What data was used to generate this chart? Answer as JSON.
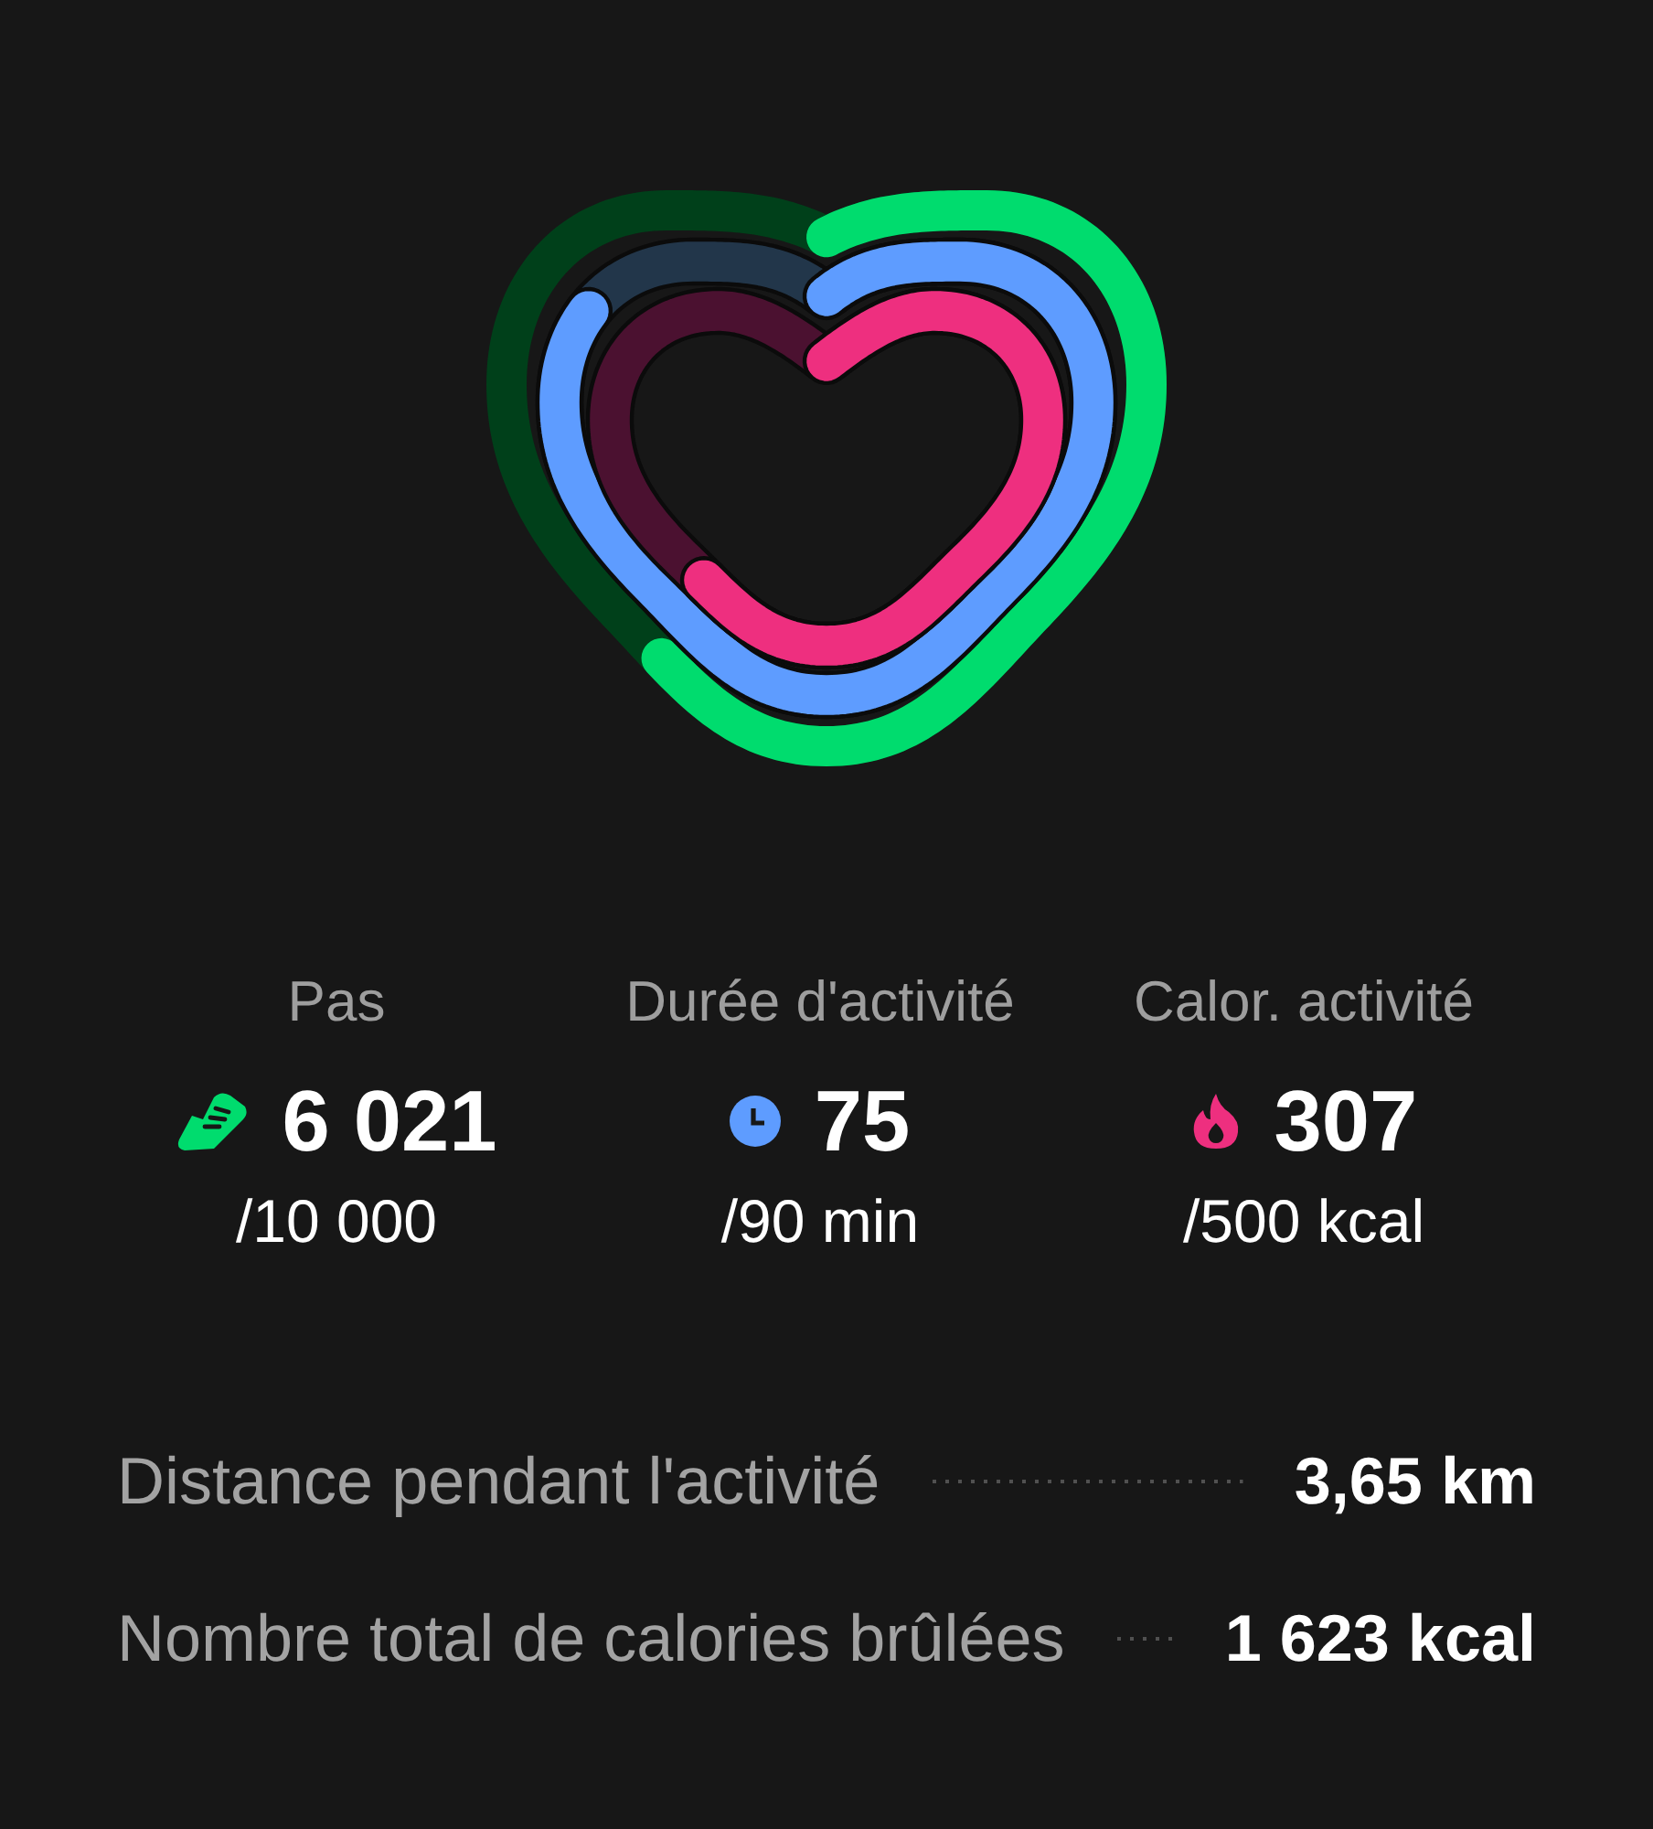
{
  "chart_data": [
    {
      "type": "other",
      "categories": [
        "Pas",
        "Durée d'activité",
        "Calor. activité"
      ],
      "series": [
        {
          "values": [
            6021,
            75,
            307
          ],
          "value_labels": [
            "6 021",
            "75",
            "307"
          ],
          "colors": [
            "#00dc6e",
            "#5e9cff",
            "#ee2f7f"
          ]
        },
        {
          "values": [
            10000,
            90,
            500
          ],
          "value_labels": [
            "/10 000",
            "/90 min",
            "/500 kcal"
          ],
          "colors": [
            "#00401a",
            "#22364a",
            "#4b1130"
          ]
        }
      ]
    },
    {
      "type": "other",
      "annotations": [
        "Distance pendant l'activité",
        "3,65 km",
        "Nombre total de calories brûlées",
        "1 623 kcal"
      ]
    }
  ]
}
